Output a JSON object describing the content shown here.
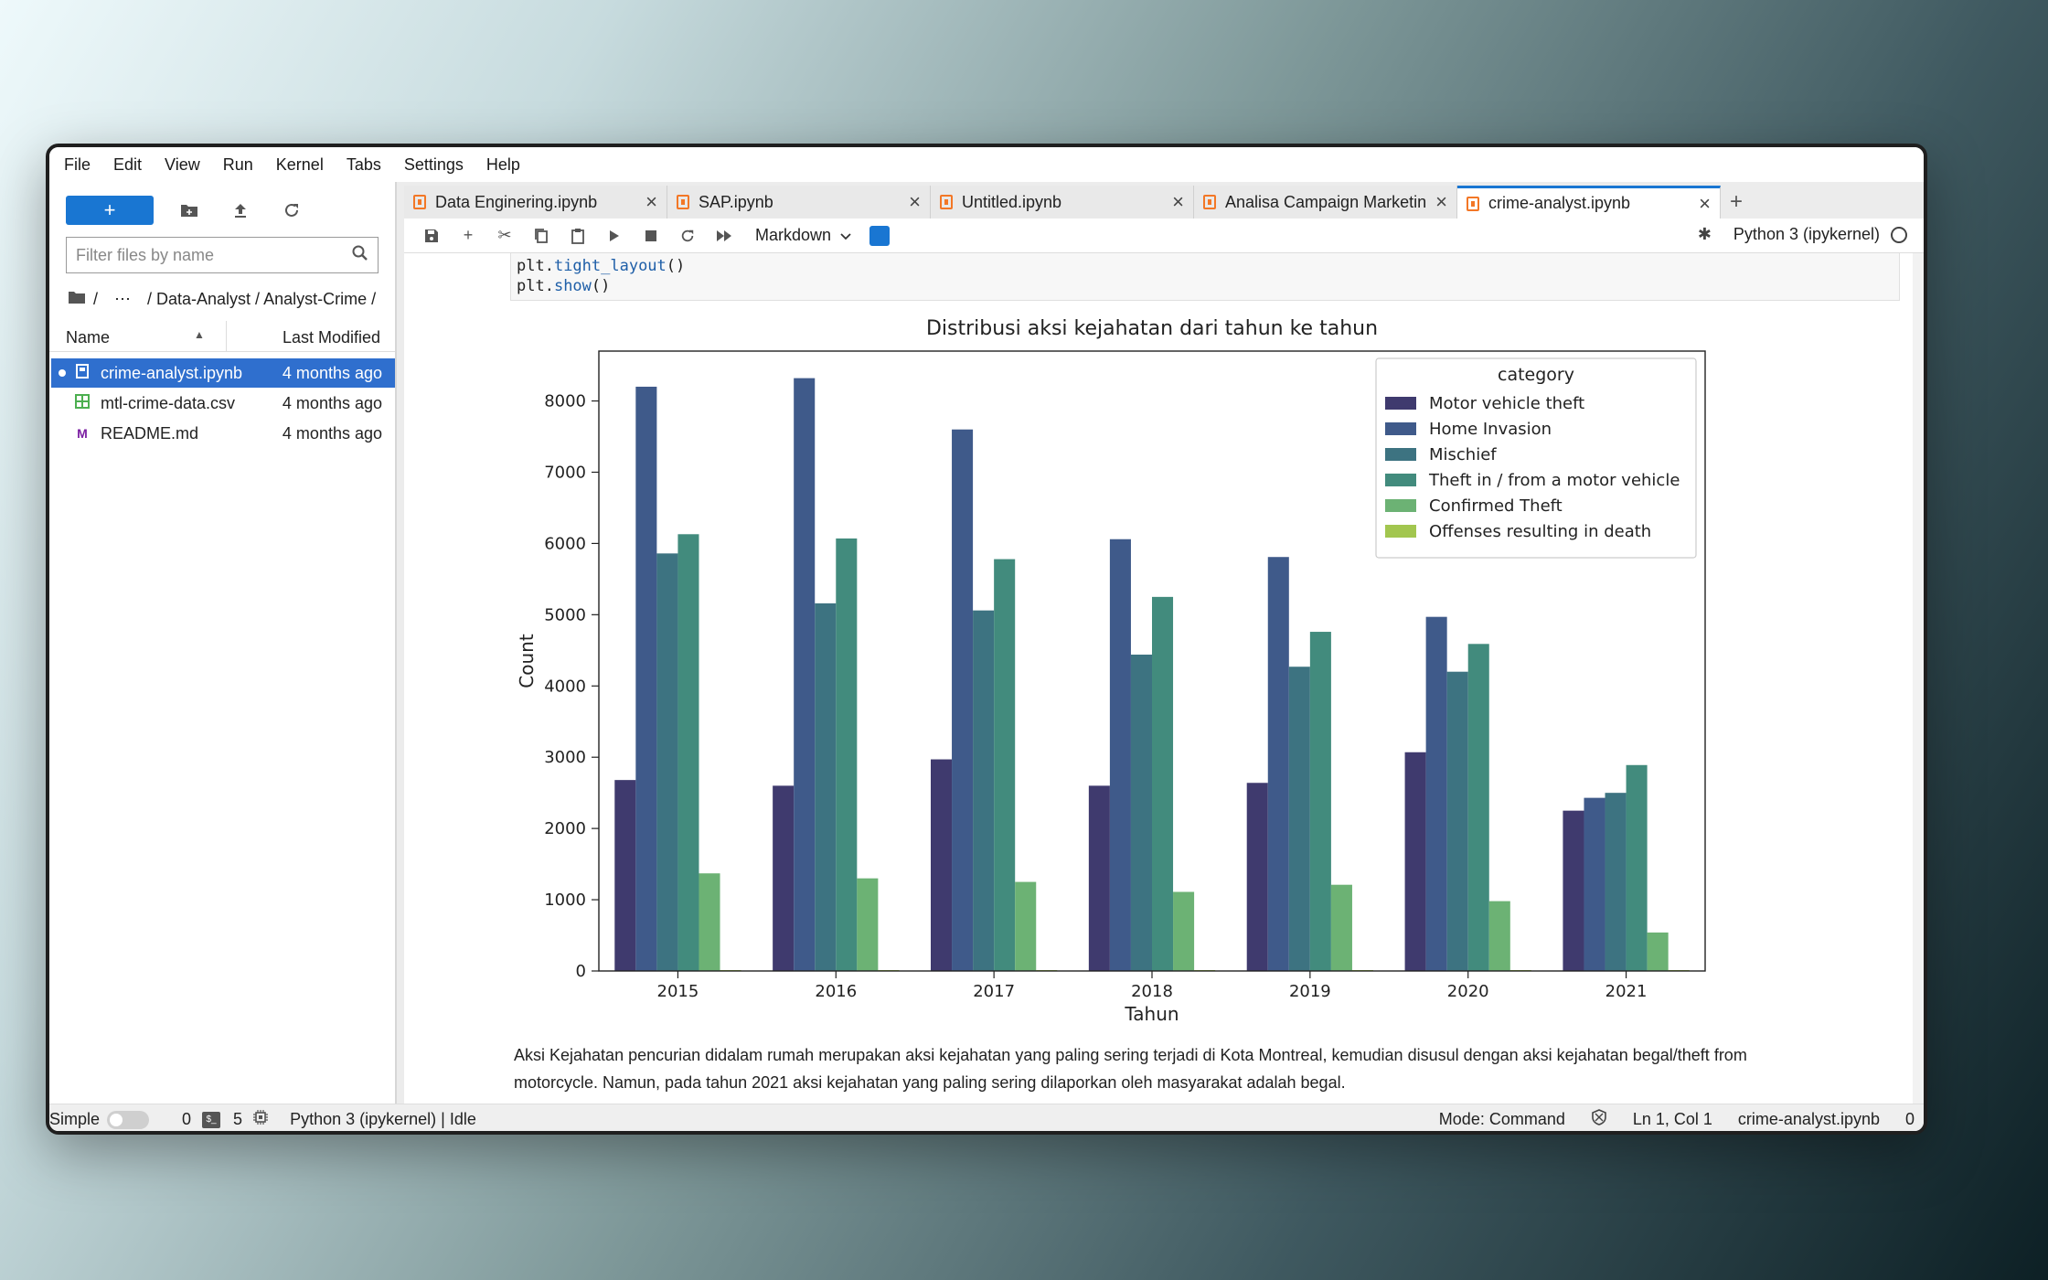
{
  "menu": [
    "File",
    "Edit",
    "View",
    "Run",
    "Kernel",
    "Tabs",
    "Settings",
    "Help"
  ],
  "sidebar": {
    "new_label": "+",
    "filter_placeholder": "Filter files by name",
    "breadcrumb": {
      "sep": "/",
      "ellipsis": "⋯",
      "path": "/ Data-Analyst / Analyst-Crime /"
    },
    "header": {
      "name": "Name",
      "modified": "Last Modified"
    },
    "files": [
      {
        "name": "crime-analyst.ipynb",
        "modified": "4 months ago",
        "icon": "notebook-icon"
      },
      {
        "name": "mtl-crime-data.csv",
        "modified": "4 months ago",
        "icon": "table-icon"
      },
      {
        "name": "README.md",
        "modified": "4 months ago",
        "icon": "markdown-icon"
      }
    ]
  },
  "tabs": [
    {
      "label": "Data Enginering.ipynb"
    },
    {
      "label": "SAP.ipynb"
    },
    {
      "label": "Untitled.ipynb"
    },
    {
      "label": "Analisa Campaign Marketin"
    },
    {
      "label": "crime-analyst.ipynb"
    }
  ],
  "toolbar": {
    "cell_type": "Markdown",
    "kernel": "Python 3 (ipykernel)"
  },
  "code": {
    "line1_obj": "plt.",
    "line1_fn": "tight_layout",
    "line1_end": "()",
    "line2_obj": "plt.",
    "line2_fn": "show",
    "line2_end": "()"
  },
  "chart_data": {
    "type": "bar",
    "title": "Distribusi aksi kejahatan dari tahun ke tahun",
    "xlabel": "Tahun",
    "ylabel": "Count",
    "ylim": [
      0,
      8700
    ],
    "yticks": [
      0,
      1000,
      2000,
      3000,
      4000,
      5000,
      6000,
      7000,
      8000
    ],
    "categories": [
      "2015",
      "2016",
      "2017",
      "2018",
      "2019",
      "2020",
      "2021"
    ],
    "legend_title": "category",
    "legend_position": "top-right",
    "series": [
      {
        "name": "Motor vehicle theft",
        "color": "#3f3a6e",
        "values": [
          2680,
          2600,
          2970,
          2600,
          2640,
          3070,
          2250
        ]
      },
      {
        "name": "Home Invasion",
        "color": "#3f5a8a",
        "values": [
          8200,
          8320,
          7600,
          6060,
          5810,
          4970,
          2430
        ]
      },
      {
        "name": "Mischief",
        "color": "#3d7381",
        "values": [
          5860,
          5160,
          5060,
          4440,
          4270,
          4200,
          2500
        ]
      },
      {
        "name": "Theft in / from a motor vehicle",
        "color": "#428b7d",
        "values": [
          6130,
          6070,
          5780,
          5250,
          4760,
          4590,
          2890
        ]
      },
      {
        "name": "Confirmed Theft",
        "color": "#6cb274",
        "values": [
          1370,
          1300,
          1250,
          1110,
          1210,
          980,
          540
        ]
      },
      {
        "name": "Offenses resulting in death",
        "color": "#a2c64f",
        "values": [
          12,
          10,
          10,
          9,
          11,
          9,
          7
        ]
      }
    ]
  },
  "markdown": {
    "line1": "Aksi Kejahatan pencurian didalam rumah merupakan aksi kejahatan yang paling sering terjadi di Kota Montreal, kemudian disusul dengan aksi kejahatan begal/theft from",
    "line2": "motorcycle. Namun, pada tahun 2021 aksi kejahatan yang paling sering dilaporkan oleh masyarakat adalah begal."
  },
  "status": {
    "mode_simple": "Simple",
    "count0": "0",
    "terminal_label": "$_",
    "count5": "5",
    "kernel_status": "Python 3 (ipykernel) | Idle",
    "mode": "Mode: Command",
    "position": "Ln 1, Col 1",
    "file": "crime-analyst.ipynb",
    "trail": "0"
  }
}
